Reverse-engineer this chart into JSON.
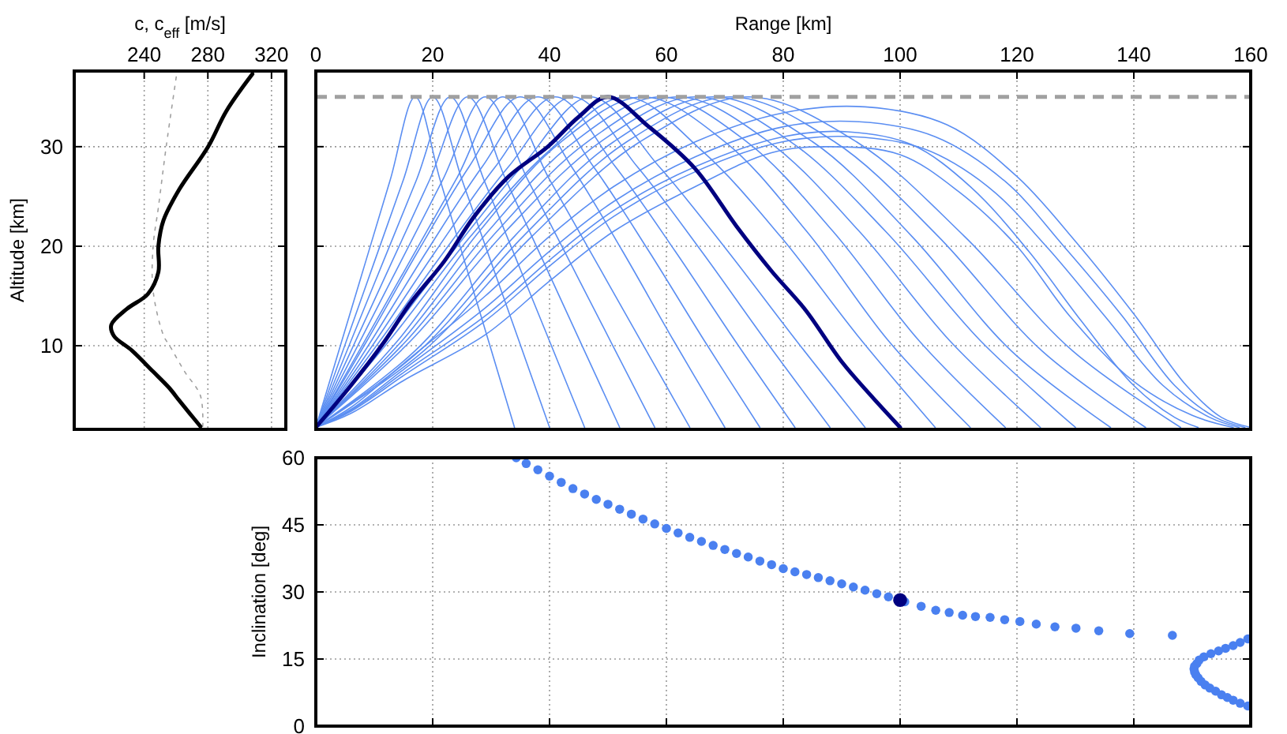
{
  "chart_data": [
    {
      "type": "line",
      "xlabel": "c, c$_{eff}$ [m/s]",
      "ylabel": "Altitude [km]",
      "xlim": [
        196,
        329
      ],
      "xticks": [
        240,
        280,
        320
      ],
      "ylim": [
        1.6,
        37.6
      ],
      "yticks": [
        10,
        20,
        30
      ],
      "grid": true,
      "series": [
        {
          "color": "#a0a0a0",
          "line_style": "dotted",
          "x": [
            276.8,
            275.3,
            265.4,
            256,
            252.2,
            245.6,
            245.6,
            248.9,
            253.8,
            260.4
          ],
          "values": [
            1.9,
            5,
            7.4,
            10,
            11,
            15.5,
            20,
            23.9,
            30,
            37.3
          ]
        },
        {
          "color": "#000000",
          "line_style": "solid",
          "x": [
            275.3,
            268.6,
            262,
            255.5,
            245.6,
            232.4,
            220.9,
            219.3,
            229.1,
            242.3,
            248.9,
            248.9,
            252.1,
            262,
            280.2,
            291.7,
            308
          ],
          "values": [
            1.9,
            3.2,
            4.5,
            5.8,
            7.4,
            9.5,
            11,
            12.1,
            13.7,
            15.2,
            17.4,
            20,
            22.6,
            25.7,
            30,
            33.6,
            37.3
          ]
        }
      ]
    },
    {
      "type": "line",
      "xlabel": "Range [km]",
      "xlim": [
        0,
        160
      ],
      "xticks": [
        0,
        20,
        40,
        60,
        80,
        100,
        120,
        140,
        160
      ],
      "ylim": [
        1.6,
        37.6
      ],
      "yticks": [
        10,
        20,
        30
      ],
      "grid": true,
      "tick_labels": "x",
      "ref_lines": [
        {
          "axis": "y",
          "value": 35,
          "color": "#a0a0a0",
          "line_style": "dashed"
        }
      ],
      "series": [
        {
          "color": "#5b8ef2",
          "x": [
            0,
            4.25,
            8.5,
            12.75,
            17,
            21.25,
            25.5,
            29.75,
            34
          ],
          "values": [
            1.8,
            10.1,
            18.4,
            26.7,
            35,
            26.7,
            18.4,
            10.1,
            1.8
          ]
        },
        {
          "color": "#5b8ef2",
          "x": [
            0,
            5,
            10,
            15,
            20,
            25,
            30,
            35,
            40
          ],
          "values": [
            1.8,
            10.1,
            18.4,
            26.7,
            35,
            26.7,
            18.4,
            10.1,
            1.8
          ]
        },
        {
          "color": "#5b8ef2",
          "x": [
            0,
            5.75,
            11.5,
            17.25,
            23,
            28.75,
            34.5,
            40.25,
            46
          ],
          "values": [
            1.8,
            10.1,
            18.4,
            26.7,
            35,
            26.7,
            18.4,
            10.1,
            1.8
          ]
        },
        {
          "color": "#5b8ef2",
          "x": [
            0,
            6.5,
            13,
            19.5,
            26,
            32.5,
            39,
            45.5,
            52
          ],
          "values": [
            1.8,
            10.1,
            18.4,
            26.7,
            35,
            26.7,
            18.4,
            10.1,
            1.8
          ]
        },
        {
          "color": "#5b8ef2",
          "x": [
            0,
            7.25,
            14.5,
            21.75,
            29,
            36.25,
            43.5,
            50.75,
            58
          ],
          "values": [
            1.8,
            10.1,
            18.4,
            26.7,
            35,
            26.7,
            18.4,
            10.1,
            1.8
          ]
        },
        {
          "color": "#5b8ef2",
          "x": [
            0,
            8,
            16,
            24,
            32,
            40,
            48,
            56,
            64
          ],
          "values": [
            1.8,
            10.1,
            18.4,
            26.7,
            35,
            26.7,
            18.4,
            10.1,
            1.8
          ]
        },
        {
          "color": "#5b8ef2",
          "x": [
            0,
            8.75,
            17.5,
            26.25,
            35,
            43.75,
            52.5,
            61.25,
            70
          ],
          "values": [
            1.8,
            10.5,
            19.5,
            28,
            35,
            28,
            19.5,
            10.5,
            1.8
          ]
        },
        {
          "color": "#5b8ef2",
          "x": [
            0,
            9.5,
            19,
            28.5,
            38,
            47.5,
            57,
            66.5,
            76
          ],
          "values": [
            1.8,
            10.5,
            19.5,
            28,
            35,
            28,
            19.5,
            10.5,
            1.8
          ]
        },
        {
          "color": "#5b8ef2",
          "x": [
            0,
            10.25,
            20.5,
            30.75,
            41,
            51.25,
            61.5,
            71.75,
            82
          ],
          "values": [
            1.8,
            10.5,
            19.5,
            28,
            35,
            28,
            19.5,
            10.5,
            1.8
          ]
        },
        {
          "color": "#5b8ef2",
          "x": [
            0,
            11,
            22,
            33,
            44,
            55,
            66,
            77,
            88
          ],
          "values": [
            1.8,
            10.5,
            19.5,
            28,
            35,
            28,
            19.5,
            10.5,
            1.8
          ]
        },
        {
          "color": "#5b8ef2",
          "x": [
            0,
            11.75,
            23.5,
            35.25,
            47,
            58.75,
            70.5,
            82.25,
            94
          ],
          "values": [
            1.8,
            10.5,
            19.5,
            28,
            35,
            28,
            19.5,
            10.5,
            1.8
          ]
        },
        {
          "color": "#5b8ef2",
          "x": [
            0,
            13.25,
            26.5,
            39.75,
            53,
            66.25,
            79.5,
            92.75,
            106
          ],
          "values": [
            1.8,
            11,
            21,
            29.5,
            35,
            29.5,
            21,
            11,
            1.8
          ]
        },
        {
          "color": "#5b8ef2",
          "x": [
            0,
            14,
            28,
            42,
            56,
            70,
            84,
            98,
            112
          ],
          "values": [
            1.8,
            10.5,
            21.5,
            30.5,
            35,
            30.5,
            21.5,
            10.5,
            1.8
          ]
        },
        {
          "color": "#5b8ef2",
          "x": [
            0,
            14.75,
            29.5,
            44.25,
            59,
            73.75,
            88.5,
            103.25,
            118
          ],
          "values": [
            1.8,
            10.5,
            21.5,
            30.5,
            35,
            30.5,
            21.5,
            10.5,
            1.8
          ]
        },
        {
          "color": "#5b8ef2",
          "x": [
            0,
            15.5,
            31,
            46.5,
            62,
            77.5,
            93,
            108.5,
            124
          ],
          "values": [
            1.8,
            10.5,
            21.5,
            30.5,
            35,
            30.5,
            21.5,
            10.5,
            1.8
          ]
        },
        {
          "color": "#5b8ef2",
          "x": [
            0,
            16.25,
            32.5,
            48.75,
            65,
            81.25,
            97.5,
            113.75,
            130
          ],
          "values": [
            1.8,
            10.5,
            21.5,
            30.5,
            35,
            30.5,
            21.5,
            10.5,
            1.8
          ]
        },
        {
          "color": "#5b8ef2",
          "x": [
            0,
            17,
            34,
            51,
            68,
            85,
            102,
            119,
            136
          ],
          "values": [
            1.8,
            9.5,
            21,
            30.5,
            35,
            30.5,
            21,
            9.5,
            1.8
          ]
        },
        {
          "color": "#5b8ef2",
          "x": [
            0,
            17.75,
            35.5,
            53.25,
            71,
            88.75,
            106.5,
            124.25,
            142
          ],
          "values": [
            1.8,
            9.5,
            21,
            30.5,
            35,
            30.5,
            21,
            9.5,
            1.8
          ]
        },
        {
          "color": "#5b8ef2",
          "x": [
            0,
            18.5,
            37,
            55.5,
            74,
            92.5,
            111,
            129.5,
            148
          ],
          "values": [
            1.8,
            9.5,
            21,
            30.5,
            35,
            30.5,
            21,
            9.5,
            1.8
          ]
        },
        {
          "color": "#5b8ef2",
          "x": [
            0,
            6,
            15,
            29,
            40,
            51,
            65,
            78,
            88,
            100,
            110,
            120,
            129,
            140,
            150,
            157
          ],
          "values": [
            1.8,
            3.2,
            6.5,
            11.1,
            16.5,
            21.5,
            26,
            29.4,
            30,
            29.2,
            25.5,
            20,
            13,
            6.4,
            3,
            1.8
          ]
        },
        {
          "color": "#5b8ef2",
          "x": [
            0,
            6,
            15,
            29,
            40,
            51,
            65,
            80,
            91,
            102,
            112,
            122,
            131,
            140,
            147,
            151
          ],
          "values": [
            1.8,
            3.5,
            7.3,
            13,
            18.6,
            23.6,
            28,
            31,
            31.5,
            30.2,
            26,
            19.5,
            12.5,
            6,
            2.8,
            1.8
          ]
        },
        {
          "color": "#5b8ef2",
          "x": [
            0,
            6,
            15,
            29,
            40,
            51,
            65,
            80,
            92,
            104,
            115,
            125,
            135,
            145,
            153,
            158
          ],
          "values": [
            1.8,
            3.4,
            7,
            12.5,
            18,
            23,
            27.5,
            30.5,
            31,
            29.8,
            26,
            20,
            13,
            6,
            2.8,
            1.8
          ]
        },
        {
          "color": "#5b8ef2",
          "x": [
            0,
            6,
            15,
            29,
            40,
            51,
            65,
            80,
            93,
            106,
            118,
            128,
            138,
            147,
            154,
            159
          ],
          "values": [
            1.8,
            3.6,
            7.6,
            13.8,
            19.5,
            24.5,
            29,
            32,
            32.5,
            31,
            26.5,
            20,
            13,
            6,
            2.8,
            1.8
          ]
        },
        {
          "color": "#5b8ef2",
          "x": [
            0,
            6,
            15,
            29,
            40,
            51,
            65,
            80,
            94,
            108,
            120,
            130,
            140,
            149,
            155,
            160
          ],
          "values": [
            1.8,
            3.8,
            8.2,
            15,
            21,
            26,
            30.5,
            33.4,
            34,
            32.2,
            27,
            20.5,
            13.2,
            6,
            2.8,
            1.8
          ]
        },
        {
          "color": "#000080",
          "x": [
            0,
            6,
            11.6,
            16.2,
            22,
            27,
            33,
            39.7,
            45,
            50,
            57,
            64.9,
            72,
            78,
            83.8,
            90,
            95,
            100
          ],
          "values": [
            1.8,
            6,
            10.3,
            14.3,
            18.5,
            22.9,
            27,
            30,
            33,
            35,
            32,
            27.8,
            22,
            17.5,
            13.6,
            8.4,
            5,
            1.8
          ]
        }
      ]
    },
    {
      "type": "scatter",
      "ylabel": "Inclination [deg]",
      "xlim": [
        0,
        160
      ],
      "xticks": [
        0,
        20,
        40,
        60,
        80,
        100,
        120,
        140,
        160
      ],
      "ylim": [
        0,
        60
      ],
      "yticks": [
        0,
        15,
        30,
        45,
        60
      ],
      "grid": true,
      "tick_labels": "y",
      "marker": "circle",
      "series": [
        {
          "color": "#4a80f0",
          "x": [
            34.3,
            36,
            38,
            40,
            42,
            44,
            46,
            48,
            50,
            52,
            54,
            56,
            58,
            60,
            62,
            64,
            66,
            68,
            70,
            72,
            74,
            76,
            78,
            80,
            82,
            84,
            86,
            88,
            90,
            92,
            94,
            96,
            98,
            100.8,
            103.6,
            106.1,
            108.4,
            110.7,
            112.9,
            115.4,
            117.9,
            120.5,
            123.3,
            126.5,
            130.1,
            134,
            139.3,
            146.6,
            159.5,
            158.2,
            157,
            155.7,
            154.5,
            153.2,
            152,
            151.2,
            150.8,
            150.4,
            150.3,
            150.4,
            150.6,
            151,
            151.5,
            152.2,
            153,
            154,
            155,
            156,
            157,
            158.2,
            159.5
          ],
          "values": [
            60,
            58.7,
            57.3,
            55.9,
            54.5,
            53.1,
            51.9,
            50.7,
            49.6,
            48.5,
            47.4,
            46.3,
            45.2,
            44.2,
            43.2,
            42.2,
            41.3,
            40.4,
            39.5,
            38.6,
            37.8,
            36.9,
            36.1,
            35.2,
            34.5,
            33.9,
            33.2,
            32.5,
            31.8,
            31.1,
            30.4,
            29.6,
            28.9,
            27.8,
            26.8,
            25.9,
            25.4,
            24.8,
            24.5,
            24.3,
            23.8,
            23.4,
            22.8,
            22.2,
            21.9,
            21.3,
            20.7,
            20.3,
            19.5,
            18.7,
            18,
            17.4,
            16.8,
            16.2,
            15.5,
            14.8,
            14,
            13.4,
            12.8,
            12.1,
            11.5,
            10.8,
            10,
            9.2,
            8.5,
            7.8,
            7,
            6.4,
            5.8,
            5.1,
            4.5
          ]
        },
        {
          "color": "#000080",
          "x": [
            100
          ],
          "values": [
            28.2
          ]
        }
      ]
    }
  ]
}
